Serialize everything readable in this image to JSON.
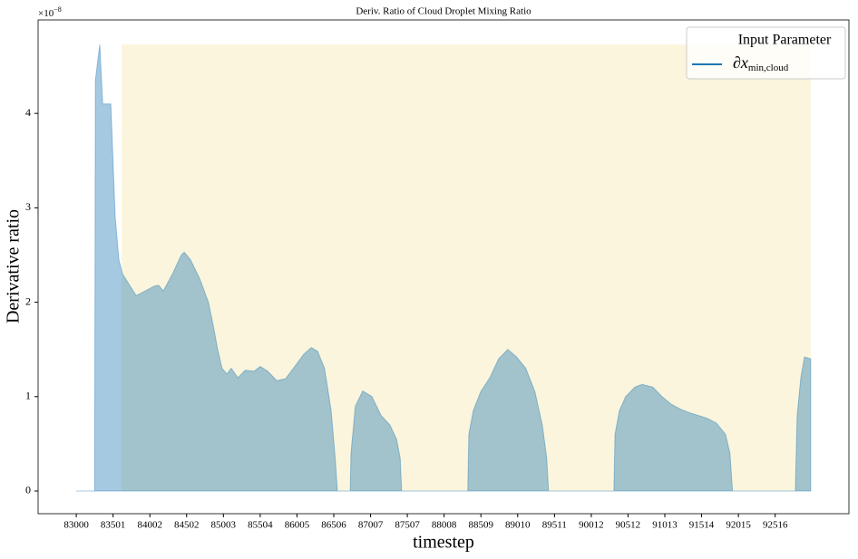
{
  "chart_data": {
    "type": "area",
    "title": "Deriv.  Ratio of Cloud Droplet Mixing Ratio",
    "x_label": "timestep",
    "y_label": "Derivative ratio",
    "y_offset_text": {
      "base": "×10",
      "exponent": "−8"
    },
    "legend": {
      "title": "Input Parameter",
      "corner": "upper right"
    },
    "xlim": [
      82480,
      93520
    ],
    "ylim": [
      -0.24,
      4.99
    ],
    "xticks": [
      83000,
      83501,
      84002,
      84502,
      85003,
      85504,
      86005,
      86506,
      87007,
      87507,
      88008,
      88509,
      89010,
      89511,
      90012,
      90512,
      91013,
      91514,
      92015,
      92516
    ],
    "yticks": [
      0,
      1,
      2,
      3,
      4
    ],
    "highlight": {
      "xlim": [
        83617,
        93000
      ],
      "top": 4.73,
      "color": "#faf5dc"
    },
    "series": [
      {
        "name": {
          "base": "∂x",
          "sub": "min,cloud"
        },
        "color": "#1f77b4",
        "x": [
          83000,
          83250,
          83260,
          83320,
          83360,
          83470,
          83530,
          83580,
          83630,
          83750,
          83815,
          83940,
          84060,
          84120,
          84185,
          84310,
          84430,
          84470,
          84555,
          84680,
          84800,
          84865,
          84925,
          84985,
          85050,
          85110,
          85200,
          85300,
          85420,
          85505,
          85605,
          85730,
          85850,
          85975,
          86100,
          86200,
          86285,
          86380,
          86470,
          86530,
          86555,
          86730,
          86740,
          86800,
          86900,
          87025,
          87150,
          87270,
          87360,
          87410,
          87430,
          88330,
          88345,
          88405,
          88505,
          88630,
          88750,
          88875,
          88995,
          89120,
          89245,
          89345,
          89405,
          89430,
          90320,
          90335,
          90395,
          90480,
          90605,
          90705,
          90850,
          90975,
          91100,
          91220,
          91345,
          91470,
          91590,
          91715,
          91840,
          91900,
          91935,
          92790,
          92815,
          92865,
          92915,
          93000
        ],
        "values": [
          0,
          0,
          4.35,
          4.73,
          4.1,
          4.1,
          2.9,
          2.45,
          2.3,
          2.15,
          2.07,
          2.12,
          2.17,
          2.18,
          2.12,
          2.3,
          2.5,
          2.53,
          2.45,
          2.25,
          2.0,
          1.75,
          1.5,
          1.3,
          1.24,
          1.3,
          1.2,
          1.28,
          1.27,
          1.32,
          1.27,
          1.17,
          1.19,
          1.32,
          1.45,
          1.52,
          1.48,
          1.3,
          0.85,
          0.3,
          0,
          0,
          0.4,
          0.9,
          1.06,
          1.0,
          0.8,
          0.7,
          0.55,
          0.35,
          0,
          0,
          0.6,
          0.85,
          1.05,
          1.2,
          1.4,
          1.5,
          1.42,
          1.3,
          1.05,
          0.7,
          0.35,
          0,
          0,
          0.6,
          0.85,
          1.0,
          1.1,
          1.13,
          1.1,
          1.0,
          0.92,
          0.87,
          0.83,
          0.8,
          0.77,
          0.72,
          0.6,
          0.4,
          0,
          0,
          0.8,
          1.2,
          1.42,
          1.4
        ]
      }
    ]
  }
}
